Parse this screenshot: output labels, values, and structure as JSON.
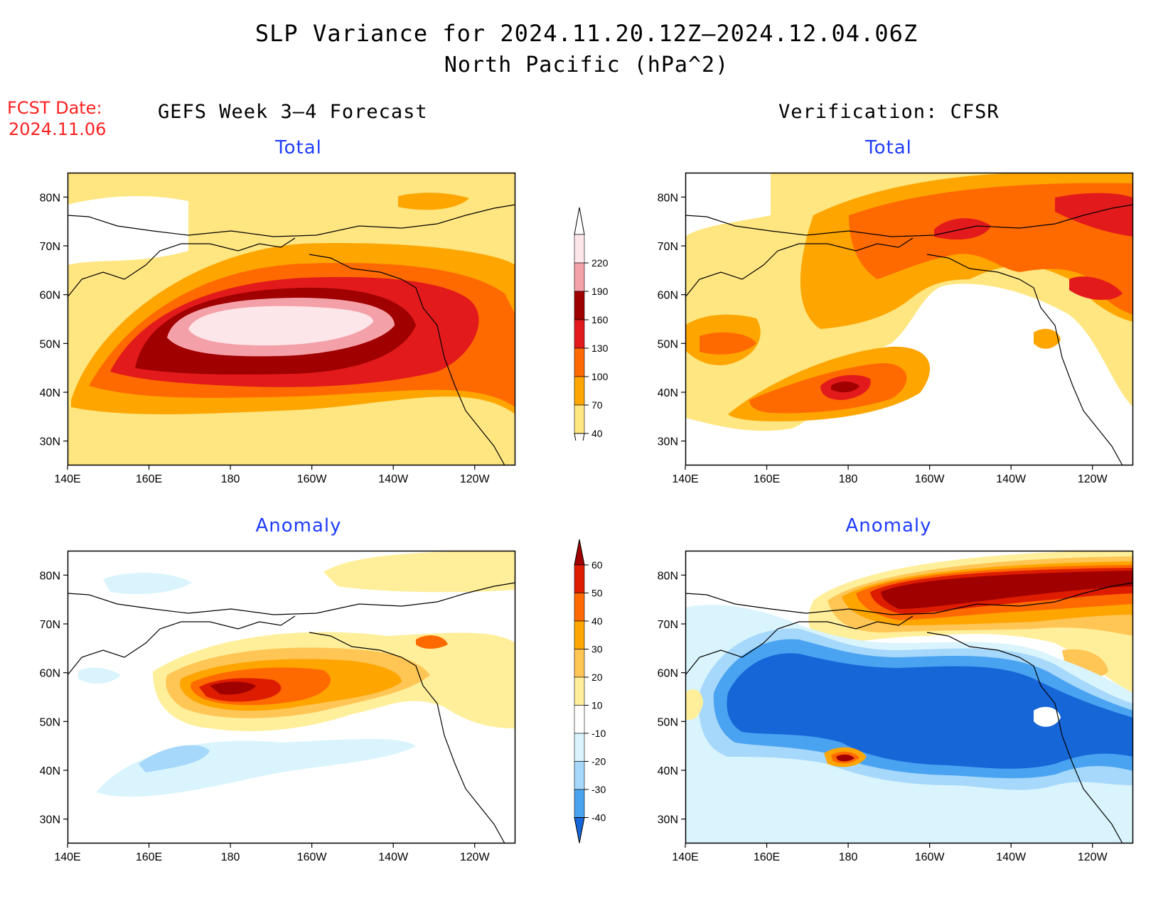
{
  "header": {
    "title_line1": "SLP Variance for 2024.11.20.12Z–2024.12.04.06Z",
    "title_line2": "North Pacific (hPa^2)",
    "fcst_label": "FCST Date:",
    "fcst_date": "2024.11.06",
    "left_column": "GEFS Week 3–4 Forecast",
    "right_column": "Verification: CFSR"
  },
  "panels": [
    {
      "id": "forecast-total",
      "subtitle": "Total"
    },
    {
      "id": "verification-total",
      "subtitle": "Total"
    },
    {
      "id": "forecast-anomaly",
      "subtitle": "Anomaly"
    },
    {
      "id": "verification-anomaly",
      "subtitle": "Anomaly"
    }
  ],
  "axes": {
    "lat_ticks": [
      "80N",
      "70N",
      "60N",
      "50N",
      "40N",
      "30N"
    ],
    "lon_ticks": [
      "140E",
      "160E",
      "180",
      "160W",
      "140W",
      "120W"
    ]
  },
  "colorbars": {
    "total": {
      "levels": [
        "40",
        "70",
        "100",
        "130",
        "160",
        "190",
        "220"
      ],
      "colors": [
        "#ffe680",
        "#ffa500",
        "#ff6a00",
        "#e31a1c",
        "#a00000",
        "#f4a0a8",
        "#fde6ea"
      ]
    },
    "anomaly": {
      "levels": [
        "60",
        "50",
        "40",
        "30",
        "20",
        "10",
        "-10",
        "-20",
        "-30",
        "-40"
      ],
      "colors": [
        "#a00000",
        "#dd1c00",
        "#ff6a00",
        "#ffa500",
        "#ffc555",
        "#ffef9a",
        "#ffffff",
        "#d9f4fd",
        "#a6d8fb",
        "#4aa3f0",
        "#1666d8"
      ]
    }
  },
  "colors": {
    "title_red": "#ff2020",
    "subtitle_blue": "#1e3cff"
  }
}
